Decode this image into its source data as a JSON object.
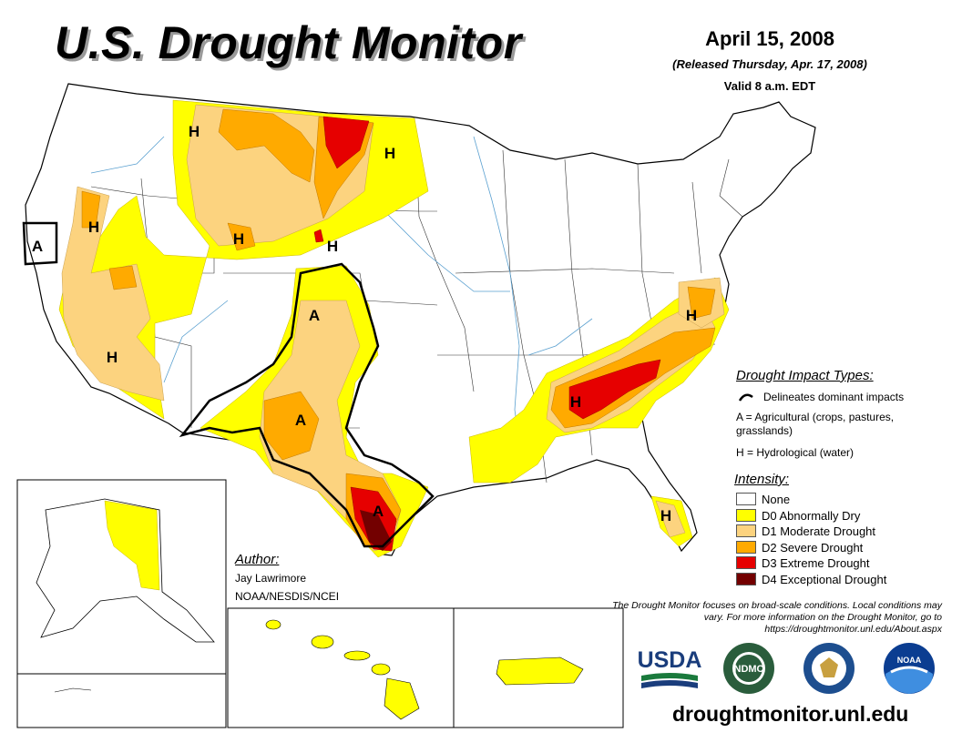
{
  "header": {
    "title": "U.S. Drought Monitor",
    "date": "April 15, 2008",
    "released": "(Released Thursday, Apr. 17, 2008)",
    "valid": "Valid 8 a.m. EDT"
  },
  "colors": {
    "none": "#ffffff",
    "d0": "#ffff00",
    "d1": "#fcd37f",
    "d2": "#ffaa00",
    "d3": "#e60000",
    "d4": "#730000",
    "impact_line": "#000000"
  },
  "map": {
    "labels": [
      "H",
      "H",
      "H",
      "H",
      "H",
      "H",
      "H",
      "H",
      "H",
      "A",
      "A",
      "A",
      "A"
    ]
  },
  "impact": {
    "title": "Drought Impact Types:",
    "line_text": "Delineates dominant impacts",
    "a_text": "A = Agricultural (crops, pastures, grasslands)",
    "h_text": "H = Hydrological (water)"
  },
  "intensity": {
    "title": "Intensity:",
    "items": [
      {
        "label": "None",
        "color": "#ffffff"
      },
      {
        "label": "D0 Abnormally Dry",
        "color": "#ffff00"
      },
      {
        "label": "D1 Moderate Drought",
        "color": "#fcd37f"
      },
      {
        "label": "D2 Severe Drought",
        "color": "#ffaa00"
      },
      {
        "label": "D3 Extreme Drought",
        "color": "#e60000"
      },
      {
        "label": "D4 Exceptional Drought",
        "color": "#730000"
      }
    ]
  },
  "author": {
    "title": "Author:",
    "name": "Jay Lawrimore",
    "org": "NOAA/NESDIS/NCEI"
  },
  "note": "The Drought Monitor focuses on broad-scale conditions. Local conditions may vary. For more information on the Drought Monitor, go to https://droughtmonitor.unl.edu/About.aspx",
  "footer": {
    "site": "droughtmonitor.unl.edu"
  },
  "logos": {
    "usda": "USDA",
    "ndmc": "NDMC",
    "noaa": "NOAA"
  }
}
